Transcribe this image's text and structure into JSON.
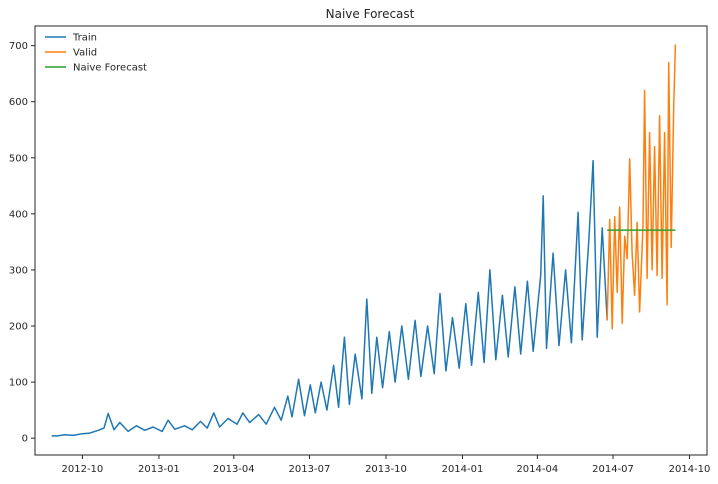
{
  "chart_data": {
    "type": "line",
    "title": "Naive Forecast",
    "xlabel": "",
    "ylabel": "",
    "x_axis": {
      "type": "date",
      "range": [
        "2012-08-05",
        "2014-10-22"
      ],
      "ticks": [
        "2012-10-01",
        "2013-01-01",
        "2013-04-01",
        "2013-07-01",
        "2013-10-01",
        "2014-01-01",
        "2014-04-01",
        "2014-07-01",
        "2014-10-01"
      ],
      "tick_labels": [
        "2012-10",
        "2013-01",
        "2013-04",
        "2013-07",
        "2013-10",
        "2014-01",
        "2014-04",
        "2014-07",
        "2014-10"
      ]
    },
    "y_axis": {
      "range": [
        -30,
        735
      ],
      "ticks": [
        0,
        100,
        200,
        300,
        400,
        500,
        600,
        700
      ],
      "tick_labels": [
        "0",
        "100",
        "200",
        "300",
        "400",
        "500",
        "600",
        "700"
      ]
    },
    "grid": false,
    "legend": "top-left",
    "series": [
      {
        "name": "Train",
        "color": "#1f77b4",
        "points": [
          [
            "2012-08-25",
            4
          ],
          [
            "2012-09-01",
            4
          ],
          [
            "2012-09-10",
            6
          ],
          [
            "2012-09-20",
            5
          ],
          [
            "2012-10-01",
            8
          ],
          [
            "2012-10-10",
            9
          ],
          [
            "2012-10-20",
            14
          ],
          [
            "2012-10-27",
            18
          ],
          [
            "2012-11-01",
            44
          ],
          [
            "2012-11-08",
            15
          ],
          [
            "2012-11-15",
            28
          ],
          [
            "2012-11-25",
            12
          ],
          [
            "2012-12-05",
            22
          ],
          [
            "2012-12-15",
            14
          ],
          [
            "2012-12-25",
            20
          ],
          [
            "2013-01-05",
            12
          ],
          [
            "2013-01-12",
            32
          ],
          [
            "2013-01-20",
            16
          ],
          [
            "2013-02-01",
            22
          ],
          [
            "2013-02-10",
            15
          ],
          [
            "2013-02-20",
            30
          ],
          [
            "2013-02-28",
            18
          ],
          [
            "2013-03-08",
            45
          ],
          [
            "2013-03-15",
            20
          ],
          [
            "2013-03-25",
            35
          ],
          [
            "2013-04-05",
            25
          ],
          [
            "2013-04-12",
            45
          ],
          [
            "2013-04-20",
            28
          ],
          [
            "2013-05-01",
            42
          ],
          [
            "2013-05-10",
            25
          ],
          [
            "2013-05-20",
            55
          ],
          [
            "2013-05-28",
            32
          ],
          [
            "2013-06-05",
            75
          ],
          [
            "2013-06-10",
            38
          ],
          [
            "2013-06-18",
            105
          ],
          [
            "2013-06-25",
            40
          ],
          [
            "2013-07-02",
            95
          ],
          [
            "2013-07-08",
            45
          ],
          [
            "2013-07-15",
            100
          ],
          [
            "2013-07-22",
            50
          ],
          [
            "2013-07-30",
            130
          ],
          [
            "2013-08-05",
            55
          ],
          [
            "2013-08-12",
            180
          ],
          [
            "2013-08-18",
            60
          ],
          [
            "2013-08-25",
            150
          ],
          [
            "2013-09-02",
            70
          ],
          [
            "2013-09-08",
            248
          ],
          [
            "2013-09-14",
            80
          ],
          [
            "2013-09-20",
            180
          ],
          [
            "2013-09-27",
            90
          ],
          [
            "2013-10-05",
            190
          ],
          [
            "2013-10-12",
            100
          ],
          [
            "2013-10-20",
            200
          ],
          [
            "2013-10-28",
            105
          ],
          [
            "2013-11-05",
            210
          ],
          [
            "2013-11-12",
            110
          ],
          [
            "2013-11-20",
            200
          ],
          [
            "2013-11-28",
            115
          ],
          [
            "2013-12-05",
            258
          ],
          [
            "2013-12-12",
            120
          ],
          [
            "2013-12-20",
            215
          ],
          [
            "2013-12-28",
            125
          ],
          [
            "2014-01-05",
            240
          ],
          [
            "2014-01-12",
            130
          ],
          [
            "2014-01-20",
            260
          ],
          [
            "2014-01-27",
            135
          ],
          [
            "2014-02-03",
            300
          ],
          [
            "2014-02-10",
            140
          ],
          [
            "2014-02-18",
            255
          ],
          [
            "2014-02-25",
            145
          ],
          [
            "2014-03-05",
            270
          ],
          [
            "2014-03-12",
            150
          ],
          [
            "2014-03-20",
            280
          ],
          [
            "2014-03-27",
            155
          ],
          [
            "2014-04-05",
            290
          ],
          [
            "2014-04-08",
            432
          ],
          [
            "2014-04-12",
            160
          ],
          [
            "2014-04-20",
            330
          ],
          [
            "2014-04-27",
            165
          ],
          [
            "2014-05-05",
            300
          ],
          [
            "2014-05-12",
            170
          ],
          [
            "2014-05-20",
            403
          ],
          [
            "2014-05-25",
            175
          ],
          [
            "2014-06-02",
            355
          ],
          [
            "2014-06-07",
            495
          ],
          [
            "2014-06-12",
            180
          ],
          [
            "2014-06-18",
            375
          ],
          [
            "2014-06-24",
            210
          ]
        ]
      },
      {
        "name": "Valid",
        "color": "#ff7f0e",
        "points": [
          [
            "2014-06-24",
            210
          ],
          [
            "2014-06-27",
            390
          ],
          [
            "2014-06-30",
            195
          ],
          [
            "2014-07-03",
            395
          ],
          [
            "2014-07-06",
            260
          ],
          [
            "2014-07-09",
            412
          ],
          [
            "2014-07-12",
            205
          ],
          [
            "2014-07-15",
            360
          ],
          [
            "2014-07-18",
            320
          ],
          [
            "2014-07-21",
            498
          ],
          [
            "2014-07-24",
            330
          ],
          [
            "2014-07-27",
            255
          ],
          [
            "2014-07-30",
            385
          ],
          [
            "2014-08-02",
            225
          ],
          [
            "2014-08-06",
            380
          ],
          [
            "2014-08-08",
            620
          ],
          [
            "2014-08-11",
            285
          ],
          [
            "2014-08-14",
            545
          ],
          [
            "2014-08-17",
            300
          ],
          [
            "2014-08-20",
            520
          ],
          [
            "2014-08-23",
            290
          ],
          [
            "2014-08-26",
            575
          ],
          [
            "2014-08-29",
            285
          ],
          [
            "2014-09-01",
            545
          ],
          [
            "2014-09-04",
            238
          ],
          [
            "2014-09-06",
            670
          ],
          [
            "2014-09-09",
            340
          ],
          [
            "2014-09-12",
            590
          ],
          [
            "2014-09-14",
            702
          ]
        ]
      },
      {
        "name": "Naive Forecast",
        "color": "#2ca02c",
        "points": [
          [
            "2014-06-24",
            371
          ],
          [
            "2014-09-14",
            371
          ]
        ]
      }
    ]
  }
}
